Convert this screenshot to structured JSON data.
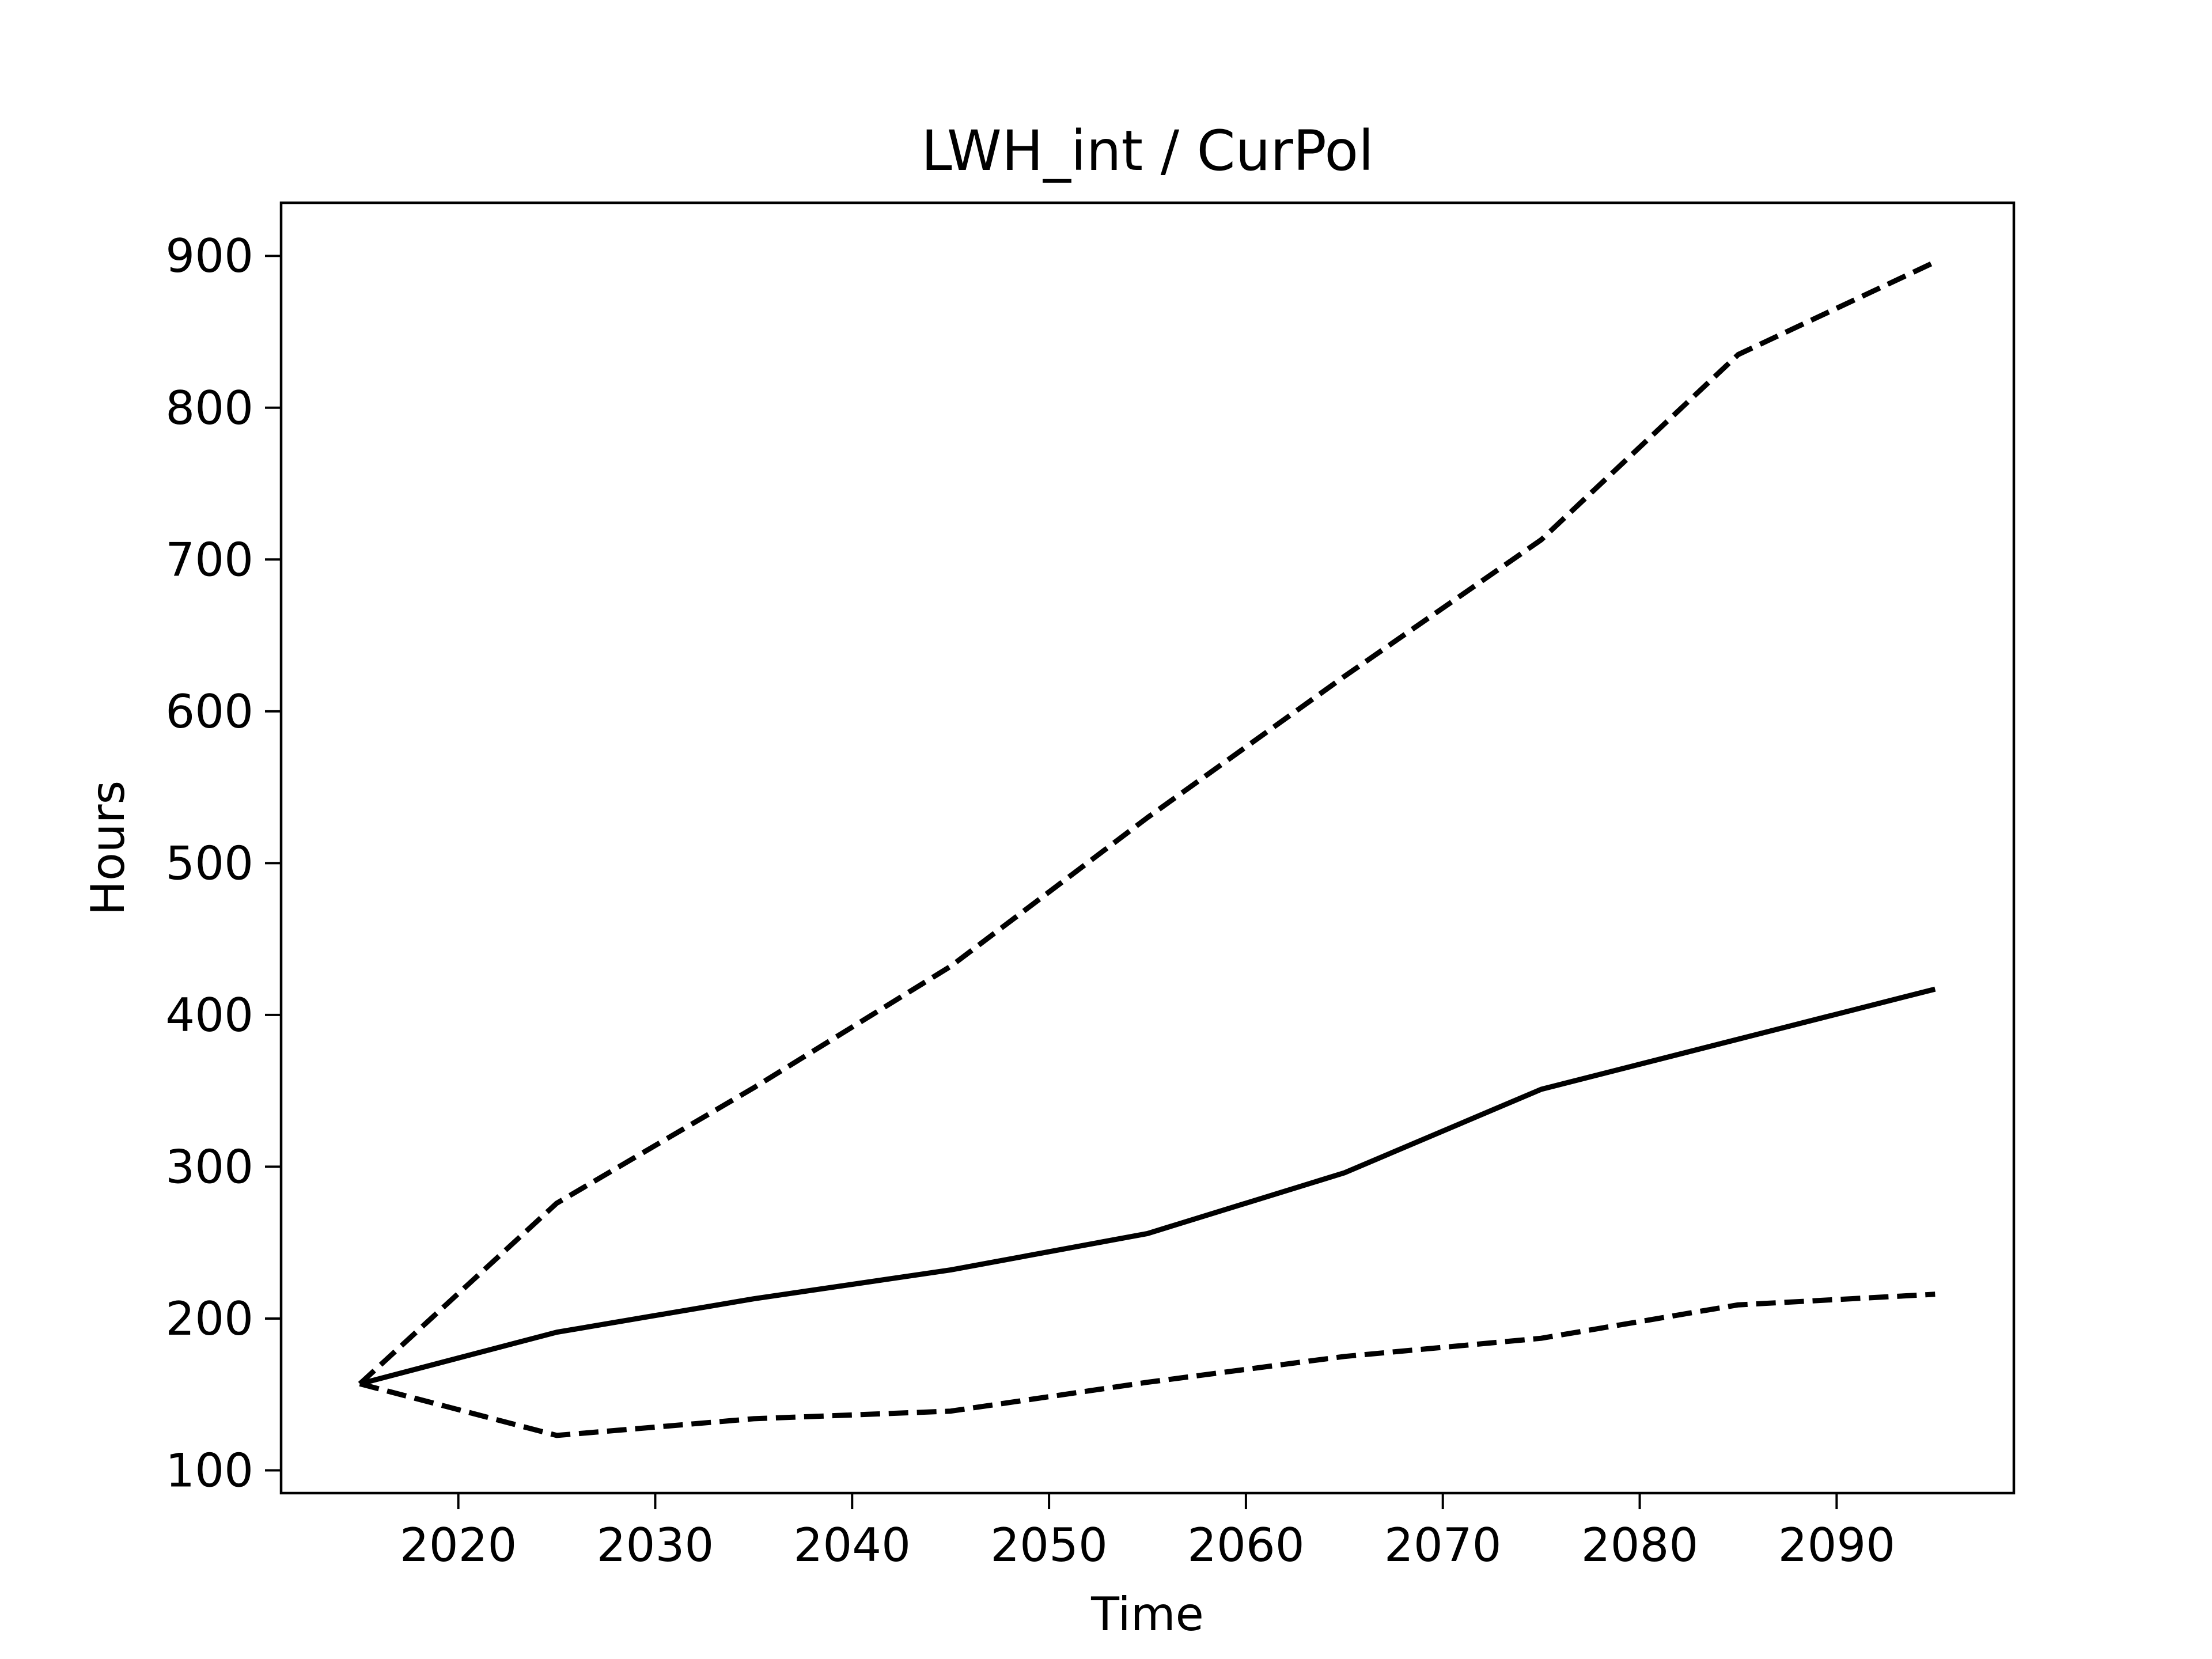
{
  "chart_data": {
    "type": "line",
    "title": "LWH_int / CurPol",
    "xlabel": "Time",
    "ylabel": "Hours",
    "xlim": [
      2011,
      2099
    ],
    "ylim": [
      85,
      935
    ],
    "xticks": [
      2020,
      2030,
      2040,
      2050,
      2060,
      2070,
      2080,
      2090
    ],
    "yticks": [
      100,
      200,
      300,
      400,
      500,
      600,
      700,
      800,
      900
    ],
    "grid": false,
    "legend": "none",
    "x": [
      2015,
      2025,
      2035,
      2045,
      2055,
      2065,
      2075,
      2085,
      2095
    ],
    "series": [
      {
        "style": "solid",
        "color": "#000000",
        "values": [
          157,
          191,
          213,
          232,
          256,
          296,
          351,
          384,
          417
        ]
      },
      {
        "style": "dashed",
        "color": "#000000",
        "values": [
          157,
          276,
          352,
          432,
          530,
          623,
          713,
          835,
          896
        ]
      },
      {
        "style": "dashed",
        "color": "#000000",
        "values": [
          157,
          123,
          134,
          139,
          158,
          175,
          187,
          209,
          216
        ]
      }
    ]
  }
}
